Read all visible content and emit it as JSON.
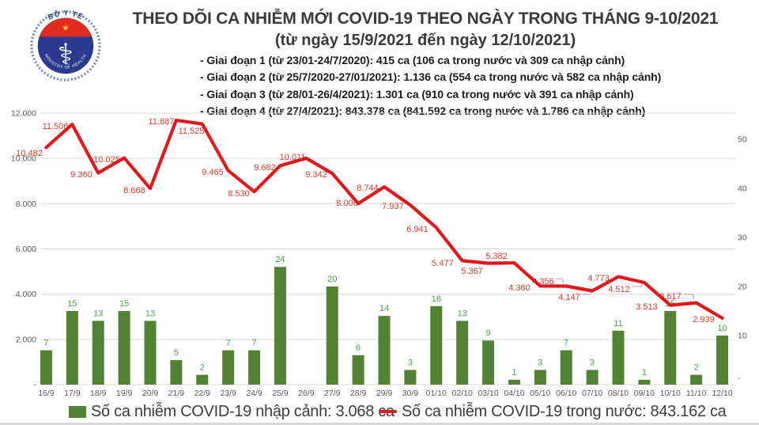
{
  "logo": {
    "top_text": "BỘ Y TẾ",
    "bottom_text": "MINISTRY OF HEALTH",
    "icons": {
      "star": "★",
      "asclepius": "⚕"
    },
    "colors": {
      "ring": "#7d8db4",
      "disc": "#2b3a8f",
      "band": "#e22b22",
      "star": "#ffd21e",
      "top_text": "#1e3c7c",
      "bottom_text": "#e8edf8"
    }
  },
  "chart_data": {
    "type": "bar+line combo (dual axis)",
    "title": "THEO DÕI CA NHIỄM MỚI COVID-19 THEO NGÀY TRONG THÁNG 9-10/2021",
    "subtitle": "(từ ngày 15/9/2021 đến ngày 12/10/2021)",
    "annotations": [
      "- Giai đoạn 1 (từ 23/01-24/7/2020): 415 ca (106 ca trong nước và 309 ca nhập cảnh)",
      "- Giai đoạn 2 (từ 25/7/2020-27/01/2021): 1.136 ca (554 ca trong nước và 582 ca nhập cảnh)",
      "- Giai đoạn 3 (từ 28/01-26/4/2021): 1.301 ca (910 ca trong nước và 391 ca nhập cảnh)",
      "- Giai đoạn 4 (từ 27/4/2021): 843.378 ca (841.592 ca trong nước và 1.786 ca nhập cảnh)"
    ],
    "categories": [
      "16/9",
      "17/9",
      "18/9",
      "19/9",
      "20/9",
      "21/9",
      "22/9",
      "23/9",
      "24/9",
      "25/9",
      "26/9",
      "27/9",
      "28/9",
      "29/9",
      "30/9",
      "01/10",
      "02/10",
      "03/10",
      "04/10",
      "05/10",
      "06/10",
      "07/10",
      "08/10",
      "09/10",
      "10/10",
      "11/10",
      "12/10"
    ],
    "series": [
      {
        "name": "Số ca nhiễm COVID-19 nhập cảnh",
        "type": "bar",
        "axis": "right",
        "color": "#548235",
        "label_color": "#4aa14f",
        "values": [
          7,
          15,
          13,
          15,
          13,
          5,
          2,
          7,
          7,
          24,
          0,
          20,
          6,
          14,
          3,
          16,
          13,
          9,
          1,
          3,
          7,
          3,
          11,
          1,
          15,
          2,
          10
        ],
        "labels": [
          "7",
          "15",
          "13",
          "15",
          "13",
          "5",
          "2",
          "7",
          "7",
          "24",
          "",
          "20",
          "6",
          "14",
          "3",
          "16",
          "13",
          "9",
          "1",
          "3",
          "7",
          "3",
          "11",
          "1",
          "15",
          "2",
          "10"
        ]
      },
      {
        "name": "Số ca nhiễm COVID-19 trong nước",
        "type": "line",
        "axis": "left",
        "color": "#e2191c",
        "label_color": "#e03a2e",
        "values": [
          10482,
          11506,
          9360,
          10025,
          8668,
          11687,
          11525,
          9465,
          8530,
          9682,
          10011,
          9342,
          8006,
          8744,
          7937,
          6941,
          5477,
          5367,
          5382,
          4360,
          4356,
          4147,
          4773,
          4512,
          3513,
          3617,
          2939
        ],
        "labels": [
          "10.482",
          "11.506",
          "9.360",
          "10.025",
          "8.668",
          "11.687",
          "11.525",
          "9.465",
          "8.530",
          "9.682",
          "10.011",
          "9.342",
          "8.006",
          "8.744",
          "7.937",
          "6.941",
          "5.477",
          "5.367",
          "5.382",
          "4.360",
          "4.356",
          "4.147",
          "4.773",
          "4.512",
          "3.513",
          "3.617",
          "2.939"
        ]
      }
    ],
    "left_axis": {
      "min": 0,
      "max": 12000,
      "ticks": [
        {
          "label": "12.000",
          "value": 12000
        },
        {
          "label": "10.000",
          "value": 10000
        },
        {
          "label": "8.000",
          "value": 8000
        },
        {
          "label": "6.000",
          "value": 6000
        },
        {
          "label": "4.000",
          "value": 4000
        },
        {
          "label": "2.000",
          "value": 2000
        },
        {
          "label": "-",
          "value": 0
        }
      ]
    },
    "right_axis": {
      "min": 0,
      "max": 50,
      "ticks": [
        {
          "label": "50",
          "value": 50
        },
        {
          "label": "40",
          "value": 40
        },
        {
          "label": "30",
          "value": 30
        },
        {
          "label": "20",
          "value": 20
        },
        {
          "label": "10",
          "value": 10
        },
        {
          "label": "-",
          "value": 0
        }
      ]
    },
    "grid": true,
    "legend_position": "bottom",
    "legend": [
      {
        "swatch": "bar",
        "color": "#548235",
        "label": "Số ca nhiễm COVID-19 nhập cảnh: 3.068 ca"
      },
      {
        "swatch": "line",
        "color": "#e2191c",
        "label": "Số ca nhiễm COVID-19 trong nước: 843.162 ca"
      }
    ],
    "text_colors": {
      "axis": "#595959",
      "gridline": "#d9d9d9"
    }
  }
}
